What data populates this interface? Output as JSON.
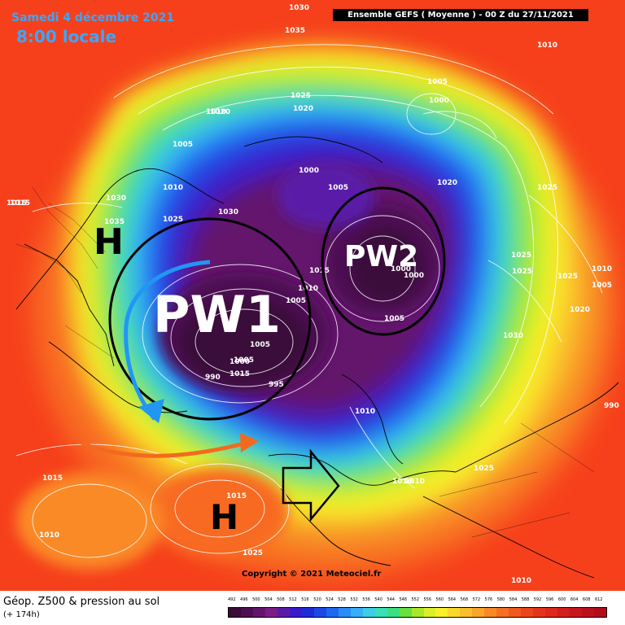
{
  "header": {
    "date": "Samedi 4 décembre 2021",
    "time": "8:00 locale",
    "ensemble_label": "Ensemble GEFS  ( Moyenne )  -  00 Z du 27/11/2021"
  },
  "footer": {
    "title": "Géop. Z500 & pression au sol",
    "lead": "(+ 174h)",
    "copyright": "Copyright © 2021 Meteociel.fr"
  },
  "annotations": {
    "pw1": "PW1",
    "pw2": "PW2",
    "high": "H"
  },
  "pressure_labels": [
    "1030",
    "1035",
    "1010",
    "1005",
    "1000",
    "1025",
    "1020",
    "1020",
    "1005",
    "1000",
    "1005",
    "1030",
    "1030",
    "1010",
    "1015",
    "1025",
    "1000",
    "1000",
    "1025",
    "1015",
    "1010",
    "1005",
    "1005",
    "1005",
    "1025",
    "1025",
    "1010",
    "1005",
    "1010",
    "1020",
    "1030",
    "1005",
    "1015",
    "1000",
    "990",
    "995",
    "990",
    "1010",
    "1015",
    "1025",
    "1010",
    "1010",
    "1020",
    "1010",
    "1025",
    "1015",
    "1010",
    "1025",
    "1015",
    "1035"
  ],
  "colorbar": {
    "labels": [
      "492",
      "496",
      "500",
      "504",
      "508",
      "512",
      "516",
      "520",
      "524",
      "528",
      "532",
      "536",
      "540",
      "544",
      "548",
      "552",
      "556",
      "560",
      "564",
      "568",
      "572",
      "576",
      "580",
      "584",
      "588",
      "592",
      "596",
      "600",
      "604",
      "608",
      "612"
    ],
    "colors": [
      "#3a0a3a",
      "#4d0f52",
      "#63156c",
      "#7a1d86",
      "#5a1aa8",
      "#3a1acb",
      "#1f2ad8",
      "#1c48e6",
      "#1e68f0",
      "#2a8cf8",
      "#36aef8",
      "#3ecde6",
      "#38e0b4",
      "#3ae080",
      "#66e23e",
      "#a8e82a",
      "#dcf02a",
      "#f8f02a",
      "#fad82a",
      "#fac02a",
      "#faa62a",
      "#f88a26",
      "#f47022",
      "#f05a1e",
      "#ec441c",
      "#e6341c",
      "#de281c",
      "#d41e1c",
      "#c8161c",
      "#bc101c",
      "#b00c1c"
    ]
  },
  "colors": {
    "header_text": "#38a8ff",
    "background_warm": "#ff4a1a",
    "vortex_core": "#3a0a3a"
  }
}
